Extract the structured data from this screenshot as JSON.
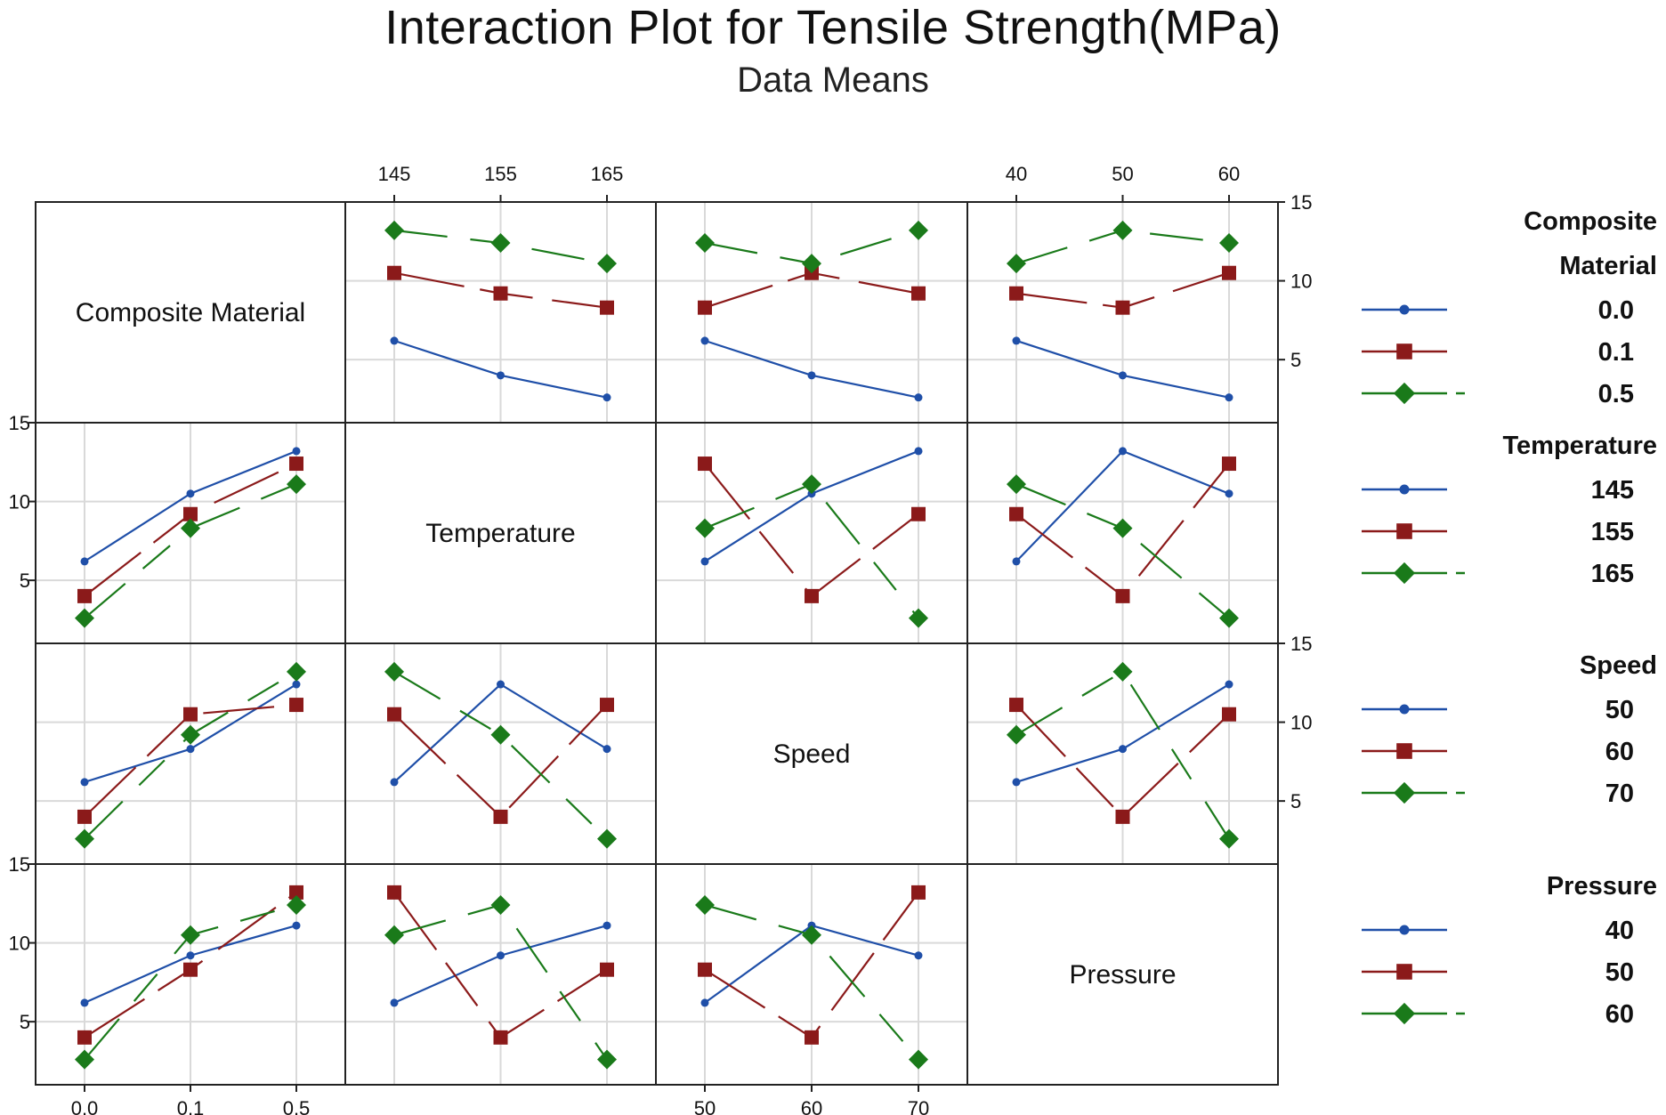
{
  "chart_data": {
    "type": "line",
    "title": "Interaction Plot for Tensile Strength(MPa)",
    "subtitle": "Data Means",
    "y_axis": {
      "min": 1,
      "max": 15,
      "ticks": [
        5,
        10,
        15
      ]
    },
    "factors": [
      {
        "name": "Composite Material",
        "levels": [
          "0.0",
          "0.1",
          "0.5"
        ],
        "legend_title_lines": [
          "Composite",
          "Material"
        ],
        "legend_labels": [
          "0.0",
          "0.1",
          "0.5"
        ]
      },
      {
        "name": "Temperature",
        "levels": [
          "145",
          "155",
          "165"
        ],
        "legend_title_lines": [
          "Temperature"
        ],
        "legend_labels": [
          "145",
          "155",
          "165"
        ]
      },
      {
        "name": "Speed",
        "levels": [
          "50",
          "60",
          "70"
        ],
        "legend_title_lines": [
          "Speed"
        ],
        "legend_labels": [
          "50",
          "60",
          "70"
        ]
      },
      {
        "name": "Pressure",
        "levels": [
          "40",
          "50",
          "60"
        ],
        "legend_title_lines": [
          "Pressure"
        ],
        "legend_labels": [
          "40",
          "50",
          "60"
        ]
      }
    ],
    "series_colors": [
      "#1f4fa8",
      "#8b1a1a",
      "#1a7a1a"
    ],
    "series_markers": [
      "circle",
      "square",
      "diamond"
    ],
    "panels": [
      {
        "row": 0,
        "col": 1,
        "series": [
          [
            6.2,
            4.0,
            2.6
          ],
          [
            10.5,
            9.2,
            8.3
          ],
          [
            13.2,
            12.4,
            11.1
          ]
        ]
      },
      {
        "row": 0,
        "col": 2,
        "series": [
          [
            6.2,
            4.0,
            2.6
          ],
          [
            8.3,
            10.5,
            9.2
          ],
          [
            12.4,
            11.1,
            13.2
          ]
        ]
      },
      {
        "row": 0,
        "col": 3,
        "series": [
          [
            6.2,
            4.0,
            2.6
          ],
          [
            9.2,
            8.3,
            10.5
          ],
          [
            11.1,
            13.2,
            12.4
          ]
        ]
      },
      {
        "row": 1,
        "col": 0,
        "series": [
          [
            6.2,
            10.5,
            13.2
          ],
          [
            4.0,
            9.2,
            12.4
          ],
          [
            2.6,
            8.3,
            11.1
          ]
        ]
      },
      {
        "row": 1,
        "col": 2,
        "series": [
          [
            6.2,
            10.5,
            13.2
          ],
          [
            12.4,
            4.0,
            9.2
          ],
          [
            8.3,
            11.1,
            2.6
          ]
        ]
      },
      {
        "row": 1,
        "col": 3,
        "series": [
          [
            6.2,
            13.2,
            10.5
          ],
          [
            9.2,
            4.0,
            12.4
          ],
          [
            11.1,
            8.3,
            2.6
          ]
        ]
      },
      {
        "row": 2,
        "col": 0,
        "series": [
          [
            6.2,
            8.3,
            12.4
          ],
          [
            4.0,
            10.5,
            11.1
          ],
          [
            2.6,
            9.2,
            13.2
          ]
        ]
      },
      {
        "row": 2,
        "col": 1,
        "series": [
          [
            6.2,
            12.4,
            8.3
          ],
          [
            10.5,
            4.0,
            11.1
          ],
          [
            13.2,
            9.2,
            2.6
          ]
        ]
      },
      {
        "row": 2,
        "col": 3,
        "series": [
          [
            6.2,
            8.3,
            12.4
          ],
          [
            11.1,
            4.0,
            10.5
          ],
          [
            9.2,
            13.2,
            2.6
          ]
        ]
      },
      {
        "row": 3,
        "col": 0,
        "series": [
          [
            6.2,
            9.2,
            11.1
          ],
          [
            4.0,
            8.3,
            13.2
          ],
          [
            2.6,
            10.5,
            12.4
          ]
        ]
      },
      {
        "row": 3,
        "col": 1,
        "series": [
          [
            6.2,
            9.2,
            11.1
          ],
          [
            13.2,
            4.0,
            8.3
          ],
          [
            10.5,
            12.4,
            2.6
          ]
        ]
      },
      {
        "row": 3,
        "col": 2,
        "series": [
          [
            6.2,
            11.1,
            9.2
          ],
          [
            8.3,
            4.0,
            13.2
          ],
          [
            12.4,
            10.5,
            2.6
          ]
        ]
      }
    ]
  }
}
